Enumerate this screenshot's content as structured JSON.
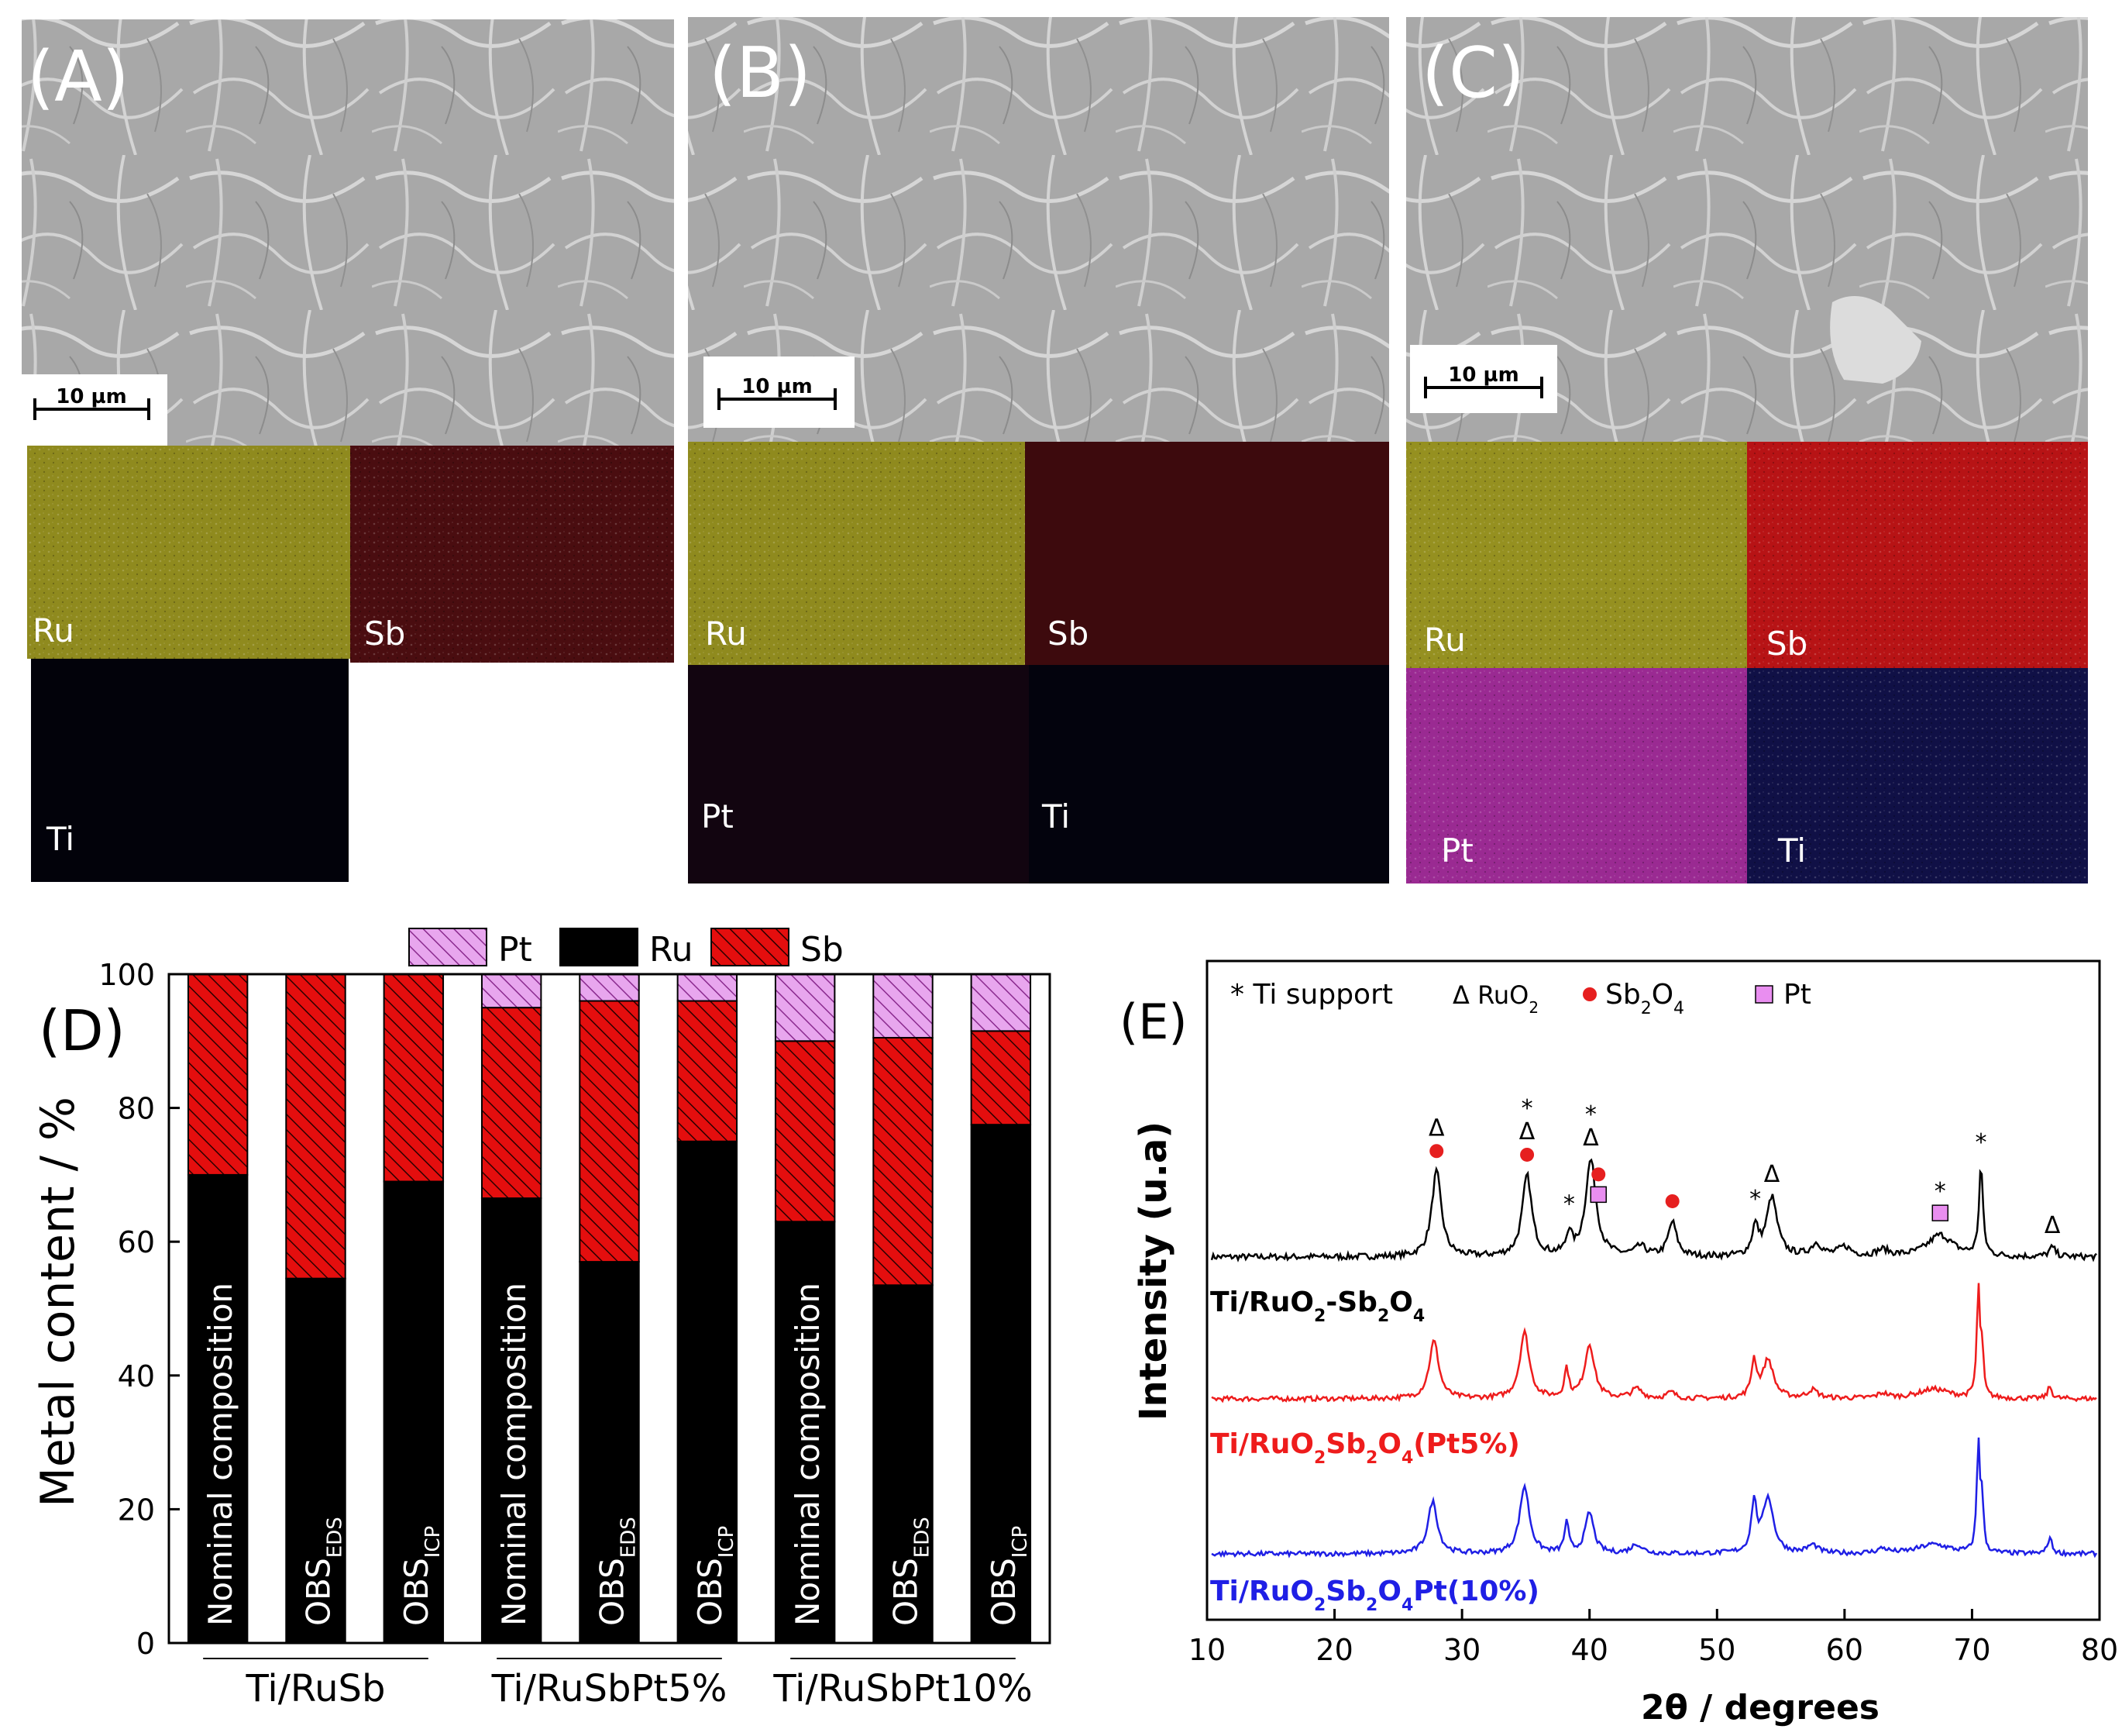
{
  "panels": {
    "A": {
      "label": "(A)",
      "scale_bar": "10 µm",
      "maps": [
        {
          "element": "Ru",
          "color": "#8f8a1e"
        },
        {
          "element": "Sb",
          "color": "#4a0d10"
        },
        {
          "element": "Ti",
          "color": "#02020a"
        }
      ]
    },
    "B": {
      "label": "(B)",
      "scale_bar": "10 µm",
      "maps": [
        {
          "element": "Ru",
          "color": "#8f8a1e"
        },
        {
          "element": "Sb",
          "color": "#3d0a0d"
        },
        {
          "element": "Pt",
          "color": "#120510"
        },
        {
          "element": "Ti",
          "color": "#03030d"
        }
      ]
    },
    "C": {
      "label": "(C)",
      "scale_bar": "10 µm",
      "maps": [
        {
          "element": "Ru",
          "color": "#959020"
        },
        {
          "element": "Sb",
          "color": "#b71315"
        },
        {
          "element": "Pt",
          "color": "#9a2a92"
        },
        {
          "element": "Ti",
          "color": "#101046"
        }
      ]
    },
    "D": {
      "label": "(D)"
    },
    "E": {
      "label": "(E)"
    }
  },
  "chart_data": [
    {
      "type": "bar",
      "stacked": true,
      "panel": "D",
      "ylabel": "Metal content / %",
      "ylim": [
        0,
        100
      ],
      "yticks": [
        0,
        20,
        40,
        60,
        80,
        100
      ],
      "legend": {
        "placement": "top",
        "entries": [
          {
            "name": "Pt",
            "color": "#e8a6ee",
            "hatch": true
          },
          {
            "name": "Ru",
            "color": "#000000",
            "hatch": false
          },
          {
            "name": "Sb",
            "color": "#e40e0e",
            "hatch": true
          }
        ]
      },
      "categories": [
        {
          "main": "Nominal composition",
          "sub": ""
        },
        {
          "main": "OBS",
          "sub": "EDS"
        },
        {
          "main": "OBS",
          "sub": "ICP"
        },
        {
          "main": "Nominal composition",
          "sub": ""
        },
        {
          "main": "OBS",
          "sub": "EDS"
        },
        {
          "main": "OBS",
          "sub": "ICP"
        },
        {
          "main": "Nominal composition",
          "sub": ""
        },
        {
          "main": "OBS",
          "sub": "EDS"
        },
        {
          "main": "OBS",
          "sub": "ICP"
        }
      ],
      "series": [
        {
          "name": "Ru",
          "values": [
            70,
            54.5,
            69,
            66.5,
            57,
            75,
            63,
            53.5,
            77.5
          ]
        },
        {
          "name": "Sb",
          "values": [
            30,
            45.5,
            31,
            28.5,
            39,
            21,
            27,
            37,
            14
          ]
        },
        {
          "name": "Pt",
          "values": [
            0,
            0,
            0,
            5,
            4,
            4,
            10,
            9.5,
            8.5
          ]
        }
      ],
      "groups": [
        "Ti/RuSb",
        "Ti/RuSbPt5%",
        "Ti/RuSbPt10%"
      ]
    },
    {
      "type": "line",
      "panel": "E",
      "xlabel": "2θ / degrees",
      "ylabel": "Intensity (u.a)",
      "xlim": [
        10,
        80
      ],
      "xticks": [
        10,
        20,
        30,
        40,
        50,
        60,
        70,
        80
      ],
      "legend": {
        "entries": [
          {
            "symbol": "*",
            "text": "Ti support"
          },
          {
            "symbol": "Δ",
            "text": "RuO",
            "sub": "2"
          },
          {
            "symbol": "●",
            "text": "Sb",
            "sub": "2",
            "text2": "O",
            "sub2": "4",
            "color": "#e61f1f"
          },
          {
            "symbol": "■",
            "text": "Pt",
            "color": "#e98ef0"
          }
        ]
      },
      "series": [
        {
          "name": "Ti/RuO2-Sb2O4",
          "label_parts": [
            "Ti/RuO",
            "2",
            "-Sb",
            "2",
            "O",
            "4"
          ],
          "color": "#000000",
          "baseline": 0.0,
          "peaks": [
            [
              28,
              55,
              0.45
            ],
            [
              35.1,
              52,
              0.45
            ],
            [
              38.4,
              14,
              0.25
            ],
            [
              40.1,
              62,
              0.5
            ],
            [
              44,
              6,
              0.5
            ],
            [
              46.5,
              22,
              0.4
            ],
            [
              53,
              18,
              0.3
            ],
            [
              54.3,
              38,
              0.5
            ],
            [
              57.8,
              8,
              0.5
            ],
            [
              60,
              6,
              0.6
            ],
            [
              63,
              4,
              0.6
            ],
            [
              67.5,
              14,
              1.2
            ],
            [
              70.7,
              58,
              0.18
            ],
            [
              76.3,
              6,
              0.3
            ]
          ]
        },
        {
          "name": "Ti/RuO2Sb2O4(Pt5%)",
          "label_parts": [
            "Ti/RuO",
            "2",
            "Sb",
            "2",
            "O",
            "4",
            "(Pt5%)"
          ],
          "color": "#ee1c1c",
          "baseline": 0.0,
          "peaks": [
            [
              27.8,
              48,
              0.45
            ],
            [
              34.9,
              55,
              0.45
            ],
            [
              38.2,
              24,
              0.2
            ],
            [
              40,
              45,
              0.45
            ],
            [
              43.7,
              8,
              0.5
            ],
            [
              46.4,
              5,
              0.4
            ],
            [
              52.9,
              30,
              0.25
            ],
            [
              54,
              32,
              0.5
            ],
            [
              57.5,
              7,
              0.5
            ],
            [
              63,
              4,
              0.5
            ],
            [
              67,
              8,
              1.5
            ],
            [
              70.5,
              90,
              0.15
            ],
            [
              70.8,
              35,
              0.12
            ],
            [
              76.1,
              10,
              0.2
            ]
          ]
        },
        {
          "name": "Ti/RuO2Sb2O4Pt(10%)",
          "label_parts": [
            "Ti/RuO",
            "2",
            "Sb",
            "2",
            "O",
            "4",
            "Pt(10%)"
          ],
          "color": "#1f1fe5",
          "baseline": 0.0,
          "peaks": [
            [
              27.7,
              45,
              0.45
            ],
            [
              34.9,
              58,
              0.45
            ],
            [
              38.2,
              26,
              0.2
            ],
            [
              40,
              35,
              0.4
            ],
            [
              43.7,
              8,
              0.5
            ],
            [
              52.9,
              42,
              0.25
            ],
            [
              54,
              48,
              0.5
            ],
            [
              57.5,
              7,
              0.5
            ],
            [
              63,
              4,
              0.5
            ],
            [
              67,
              8,
              1.5
            ],
            [
              70.5,
              95,
              0.15
            ],
            [
              70.8,
              40,
              0.12
            ],
            [
              76.1,
              14,
              0.2
            ]
          ]
        }
      ],
      "annotations": [
        {
          "x": 28,
          "symbols": [
            "Δ",
            "●"
          ]
        },
        {
          "x": 35.1,
          "symbols": [
            "*",
            "Δ",
            "●"
          ]
        },
        {
          "x": 38.4,
          "symbols": [
            "*"
          ]
        },
        {
          "x": 40.1,
          "symbols": [
            "*",
            "Δ"
          ]
        },
        {
          "x": 40.7,
          "symbols": [
            "●",
            "■"
          ]
        },
        {
          "x": 46.5,
          "symbols": [
            "●"
          ]
        },
        {
          "x": 53,
          "symbols": [
            "*"
          ]
        },
        {
          "x": 54.3,
          "symbols": [
            "Δ"
          ]
        },
        {
          "x": 67.5,
          "symbols": [
            "*",
            "■"
          ]
        },
        {
          "x": 70.7,
          "symbols": [
            "*"
          ]
        },
        {
          "x": 76.3,
          "symbols": [
            "Δ"
          ]
        }
      ]
    }
  ]
}
